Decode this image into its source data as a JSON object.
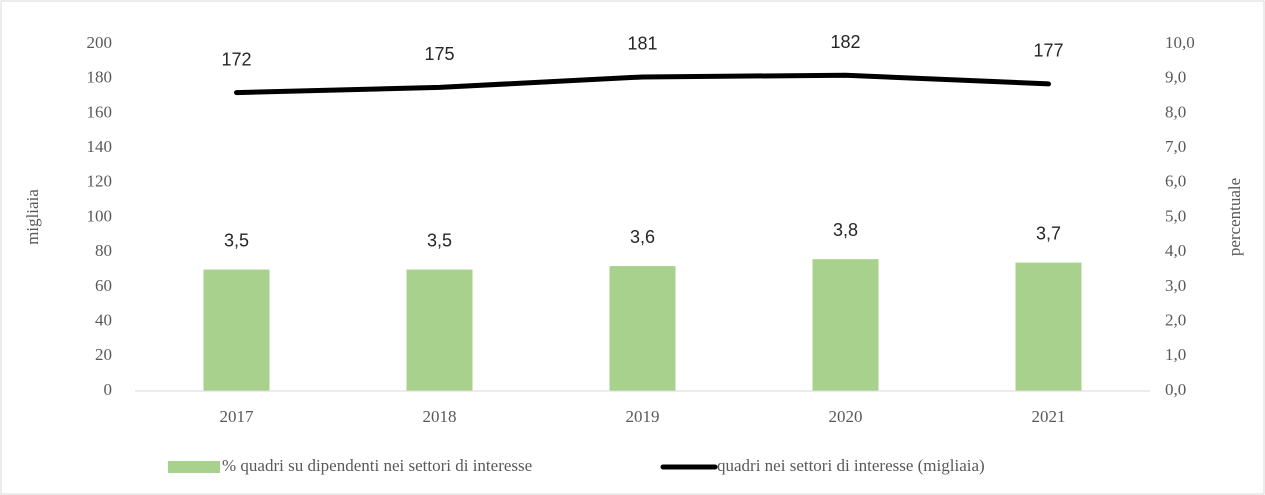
{
  "chart_data": {
    "type": "bar+line",
    "categories": [
      "2017",
      "2018",
      "2019",
      "2020",
      "2021"
    ],
    "ylabel": "migliaia",
    "y2label": "percentuale",
    "ylim": [
      0,
      200
    ],
    "yticks": [
      0,
      20,
      40,
      60,
      80,
      100,
      120,
      140,
      160,
      180,
      200
    ],
    "y2lim": [
      0,
      10
    ],
    "y2ticks": [
      {
        "value": 0,
        "label": "0,0"
      },
      {
        "value": 1,
        "label": "1,0"
      },
      {
        "value": 2,
        "label": "2,0"
      },
      {
        "value": 3,
        "label": "3,0"
      },
      {
        "value": 4,
        "label": "4,0"
      },
      {
        "value": 5,
        "label": "5,0"
      },
      {
        "value": 6,
        "label": "6,0"
      },
      {
        "value": 7,
        "label": "7,0"
      },
      {
        "value": 8,
        "label": "8,0"
      },
      {
        "value": 9,
        "label": "9,0"
      },
      {
        "value": 10,
        "label": "10,0"
      }
    ],
    "series": [
      {
        "name": "% quadri su dipendenti nei settori di interesse",
        "type": "bar",
        "axis": "y2",
        "color": "#a9d18e",
        "values": [
          3.5,
          3.5,
          3.6,
          3.8,
          3.7
        ],
        "value_labels": [
          "3,5",
          "3,5",
          "3,6",
          "3,8",
          "3,7"
        ]
      },
      {
        "name": "quadri nei settori di interesse (migliaia)",
        "type": "line",
        "axis": "y",
        "color": "#000000",
        "values": [
          172,
          175,
          181,
          182,
          177
        ]
      }
    ],
    "legend": "bottom"
  }
}
